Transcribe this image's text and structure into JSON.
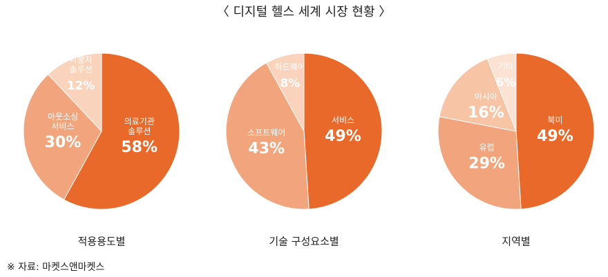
{
  "title": "〈 디지털 헬스 세계 시장 현황 〉",
  "source": "※ 자료: 마켓스앤마켓스",
  "chart_data": [
    {
      "type": "pie",
      "title": "적용용도별",
      "categories": [
        "의료기관 솔루션",
        "아웃소싱 서비스",
        "의료비 지불자 솔루션"
      ],
      "values": [
        58,
        30,
        12
      ],
      "value_labels": [
        "58%",
        "30%",
        "12%"
      ],
      "colors": [
        "#e8692a",
        "#f2a57c",
        "#f9d3bc"
      ]
    },
    {
      "type": "pie",
      "title": "기술 구성요소별",
      "categories": [
        "서비스",
        "소프트웨어",
        "하드웨어"
      ],
      "values": [
        49,
        43,
        8
      ],
      "value_labels": [
        "49%",
        "43%",
        "8%"
      ],
      "colors": [
        "#e8692a",
        "#f2a57c",
        "#f9d3bc"
      ]
    },
    {
      "type": "pie",
      "title": "지역별",
      "categories": [
        "북미",
        "유럽",
        "아시아",
        "기타"
      ],
      "values": [
        49,
        29,
        16,
        6
      ],
      "value_labels": [
        "49%",
        "29%",
        "16%",
        "6%"
      ],
      "colors": [
        "#e8692a",
        "#f2a57c",
        "#f7c4a6",
        "#fbe2d2"
      ]
    }
  ]
}
